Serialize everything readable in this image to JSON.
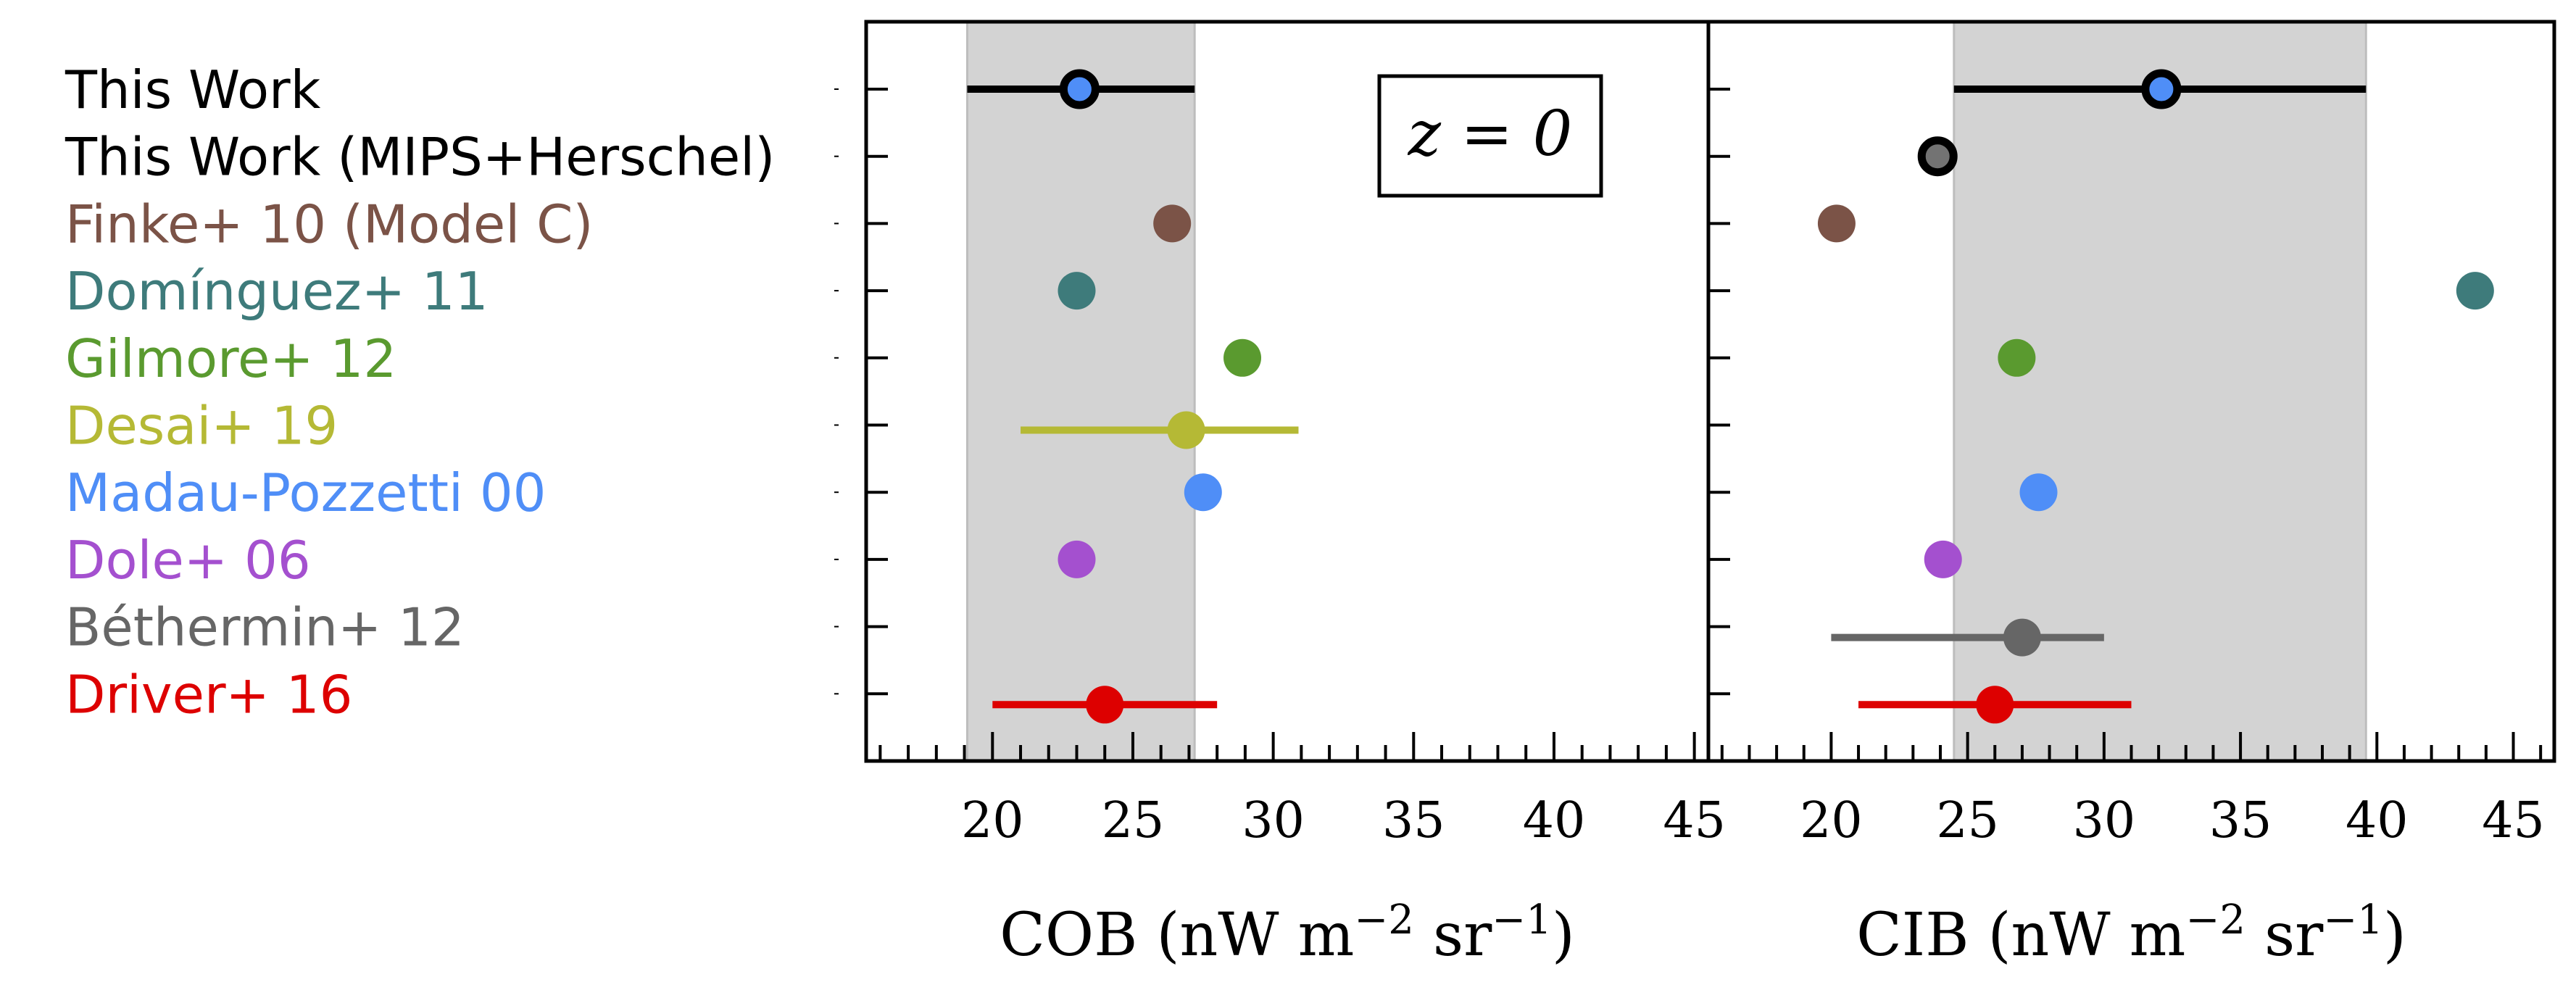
{
  "figure": {
    "annotation": "z = 0"
  },
  "chart_data": [
    {
      "type": "scatter",
      "panel": "COB",
      "xlabel": "COB (nW m^-2 sr^-1)",
      "xlabel_main": "COB (nW m",
      "xlabel_exp1": "−2",
      "xlabel_mid": " sr",
      "xlabel_exp2": "−1",
      "xlabel_end": ")",
      "xlim": [
        15.5,
        45.5
      ],
      "xticks": [
        20,
        25,
        30,
        35,
        40,
        45
      ],
      "xtick_labels": [
        "20",
        "25",
        "30",
        "35",
        "40",
        "45"
      ],
      "band": [
        19.1,
        27.2
      ],
      "grid": false,
      "series": [
        {
          "name": "This Work",
          "x": 23.1,
          "xerr": [
            19.1,
            27.2
          ],
          "color": "#000000",
          "marker_fill": "#4f8ef7",
          "marker_edge": "#000000"
        },
        {
          "name": "Finke+ 10 (Model C)",
          "x": 26.4,
          "color": "#7b5347"
        },
        {
          "name": "Domínguez+ 11",
          "x": 23.0,
          "color": "#3e7b7b"
        },
        {
          "name": "Gilmore+ 12",
          "x": 28.9,
          "color": "#5a9a2f"
        },
        {
          "name": "Desai+ 19",
          "x": 26.9,
          "xerr": [
            21.0,
            30.9
          ],
          "color": "#b5b935"
        },
        {
          "name": "Madau-Pozzetti 00",
          "x": 27.5,
          "color": "#4f8ef7"
        },
        {
          "name": "Dole+ 06",
          "x": 23.0,
          "color": "#a450cf"
        },
        {
          "name": "Driver+ 16",
          "x": 24.0,
          "xerr": [
            20.0,
            28.0
          ],
          "color": "#dd0000"
        }
      ]
    },
    {
      "type": "scatter",
      "panel": "CIB",
      "xlabel": "CIB (nW m^-2 sr^-1)",
      "xlabel_main": "CIB (nW m",
      "xlabel_exp1": "−2",
      "xlabel_mid": " sr",
      "xlabel_exp2": "−1",
      "xlabel_end": ")",
      "xlim": [
        15.5,
        46.5
      ],
      "xticks": [
        20,
        25,
        30,
        35,
        40,
        45
      ],
      "xtick_labels": [
        "20",
        "25",
        "30",
        "35",
        "40",
        "45"
      ],
      "band": [
        24.5,
        39.6
      ],
      "grid": false,
      "series": [
        {
          "name": "This Work",
          "x": 32.1,
          "xerr": [
            24.5,
            39.6
          ],
          "color": "#000000",
          "marker_fill": "#4f8ef7",
          "marker_edge": "#000000"
        },
        {
          "name": "This Work (MIPS+Herschel)",
          "x": 23.9,
          "color": "#000000",
          "marker_fill": "#737373",
          "marker_edge": "#000000"
        },
        {
          "name": "Finke+ 10 (Model C)",
          "x": 20.2,
          "color": "#7b5347"
        },
        {
          "name": "Domínguez+ 11",
          "x": 43.6,
          "color": "#3e7b7b"
        },
        {
          "name": "Gilmore+ 12",
          "x": 26.8,
          "color": "#5a9a2f"
        },
        {
          "name": "Madau-Pozzetti 00",
          "x": 27.6,
          "color": "#4f8ef7"
        },
        {
          "name": "Dole+ 06",
          "x": 24.1,
          "color": "#a450cf"
        },
        {
          "name": "Béthermin+ 12",
          "x": 27.0,
          "xerr": [
            20.0,
            30.0
          ],
          "color": "#666666"
        },
        {
          "name": "Driver+ 16",
          "x": 26.0,
          "xerr": [
            21.0,
            31.0
          ],
          "color": "#dd0000"
        }
      ]
    }
  ],
  "legend": [
    {
      "label": "This Work",
      "color": "#000000"
    },
    {
      "label": "This Work (MIPS+Herschel)",
      "color": "#000000"
    },
    {
      "label": "Finke+ 10 (Model C)",
      "color": "#7b5347"
    },
    {
      "label": "Domínguez+ 11",
      "color": "#3e7b7b"
    },
    {
      "label": "Gilmore+ 12",
      "color": "#5a9a2f"
    },
    {
      "label": "Desai+ 19",
      "color": "#b5b935"
    },
    {
      "label": "Madau-Pozzetti 00",
      "color": "#4f8ef7"
    },
    {
      "label": "Dole+ 06",
      "color": "#a450cf"
    },
    {
      "label": "Béthermin+ 12",
      "color": "#666666"
    },
    {
      "label": "Driver+ 16",
      "color": "#dd0000"
    }
  ]
}
